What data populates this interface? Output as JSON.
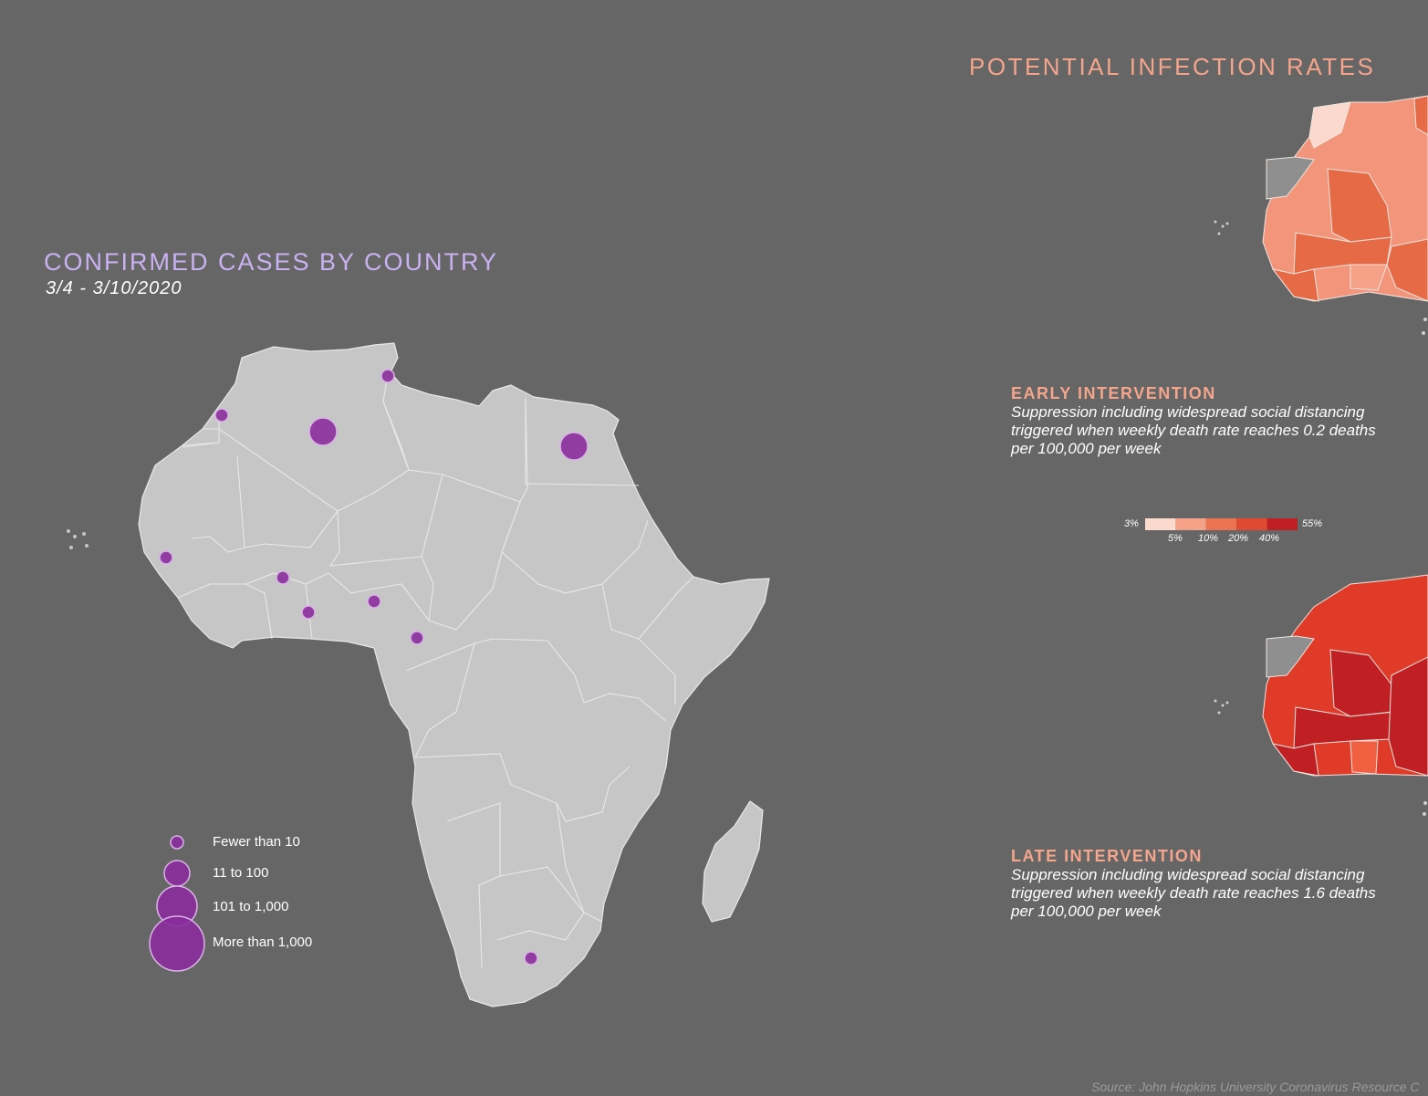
{
  "confirmed": {
    "title": "CONFIRMED CASES BY COUNTRY",
    "date_range": "3/4 - 3/10/2020"
  },
  "potential": {
    "title": "POTENTIAL INFECTION RATES"
  },
  "early": {
    "heading": "EARLY INTERVENTION",
    "description": "Suppression including widespread social distancing triggered when weekly death rate reaches 0.2 deaths per 100,000 per week"
  },
  "late": {
    "heading": "LATE INTERVENTION",
    "description": "Suppression including widespread social distancing triggered when weekly death rate reaches 1.6 deaths per 100,000 per week"
  },
  "legend": {
    "items": [
      {
        "label": "Fewer than 10"
      },
      {
        "label": "11 to 100"
      },
      {
        "label": "101 to 1,000"
      },
      {
        "label": "More than 1,000"
      }
    ]
  },
  "scale": {
    "min_label": "3%",
    "max_label": "55%",
    "ticks": [
      "5%",
      "10%",
      "20%",
      "40%"
    ],
    "colors": [
      "#fbd9cc",
      "#f4a187",
      "#ec7350",
      "#e04a30",
      "#c01f24"
    ]
  },
  "colors": {
    "land": "#c6c6c6",
    "bubble": "#8a2c9c",
    "bubble_stroke": "#d9b3e6",
    "disputed": "#8f8f8f"
  },
  "source": "Source: John Hopkins University Coronavirus Resource C"
}
